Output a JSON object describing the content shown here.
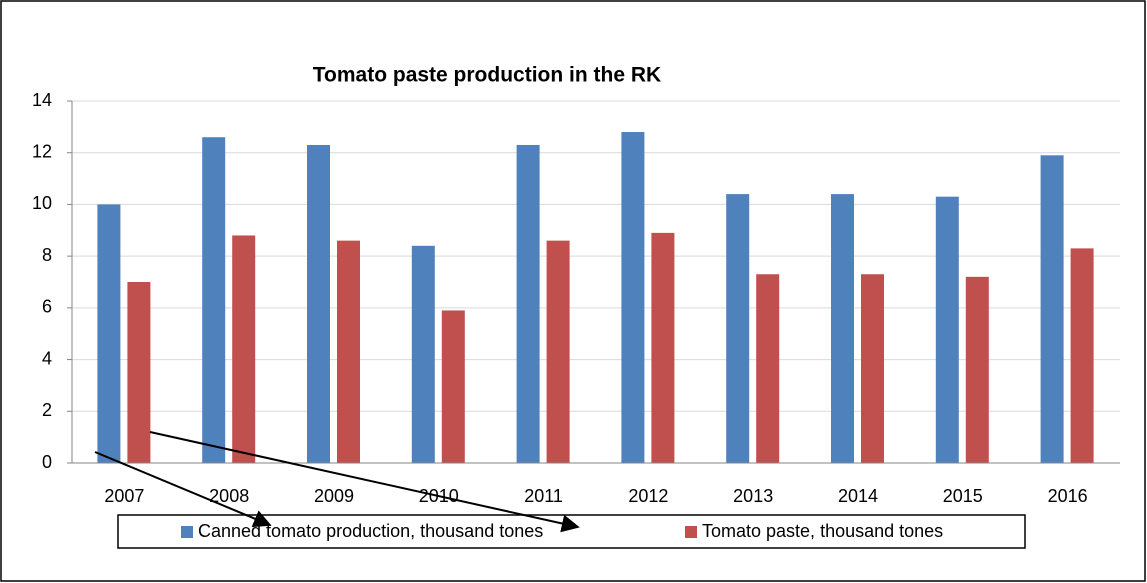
{
  "chart_data": {
    "type": "bar",
    "title": "Tomato paste production in the RK",
    "categories": [
      "2007",
      "2008",
      "2009",
      "2010",
      "2011",
      "2012",
      "2013",
      "2014",
      "2015",
      "2016"
    ],
    "series": [
      {
        "name": "Canned tomato production, thousand tones",
        "color": "#4f81bd",
        "values": [
          10.0,
          12.6,
          12.3,
          8.4,
          12.3,
          12.8,
          10.4,
          10.4,
          10.3,
          11.9
        ]
      },
      {
        "name": "Tomato paste, thousand tones",
        "color": "#c0504d",
        "values": [
          7.0,
          8.8,
          8.6,
          5.9,
          8.6,
          8.9,
          7.3,
          7.3,
          7.2,
          8.3
        ]
      }
    ],
    "ylim": [
      0,
      14
    ],
    "yticks": [
      0,
      2,
      4,
      6,
      8,
      10,
      12,
      14
    ],
    "grid": true,
    "legend": "bottom"
  }
}
